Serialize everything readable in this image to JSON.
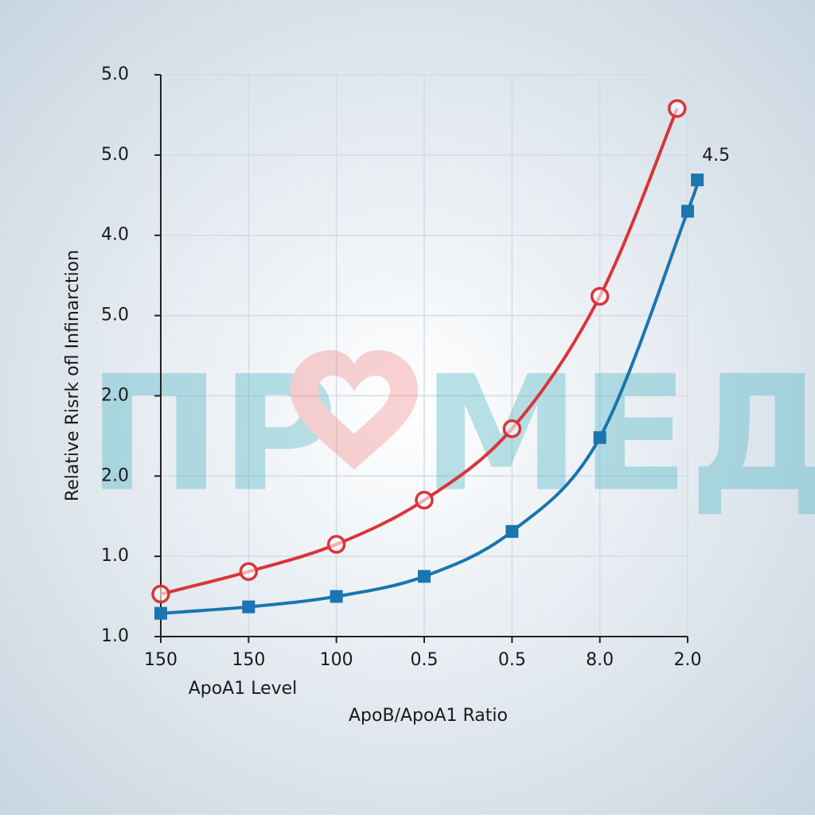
{
  "chart_data": {
    "type": "line",
    "ylabel": "Relative Risrk ofl Infinarction",
    "xlabel": "ApoA1 Level",
    "xlabel2": "ApoB/ApoA1 Ratio",
    "watermark": [
      "ПР",
      "МЕД"
    ],
    "annotations": [
      {
        "text": "4.5",
        "series": 1
      }
    ],
    "grid": true,
    "xlim": [
      0,
      6
    ],
    "xticks": [
      {
        "value": 0,
        "label": "150"
      },
      {
        "value": 1,
        "label": "150"
      },
      {
        "value": 2,
        "label": "100"
      },
      {
        "value": 3,
        "label": "0.5"
      },
      {
        "value": 4,
        "label": "0.5"
      },
      {
        "value": 5,
        "label": "8.0"
      },
      {
        "value": 6,
        "label": "2.0"
      }
    ],
    "ylim": [
      0,
      7
    ],
    "yticks": [
      {
        "value": 0,
        "label": "1.0"
      },
      {
        "value": 1,
        "label": "1.0"
      },
      {
        "value": 2,
        "label": "2.0"
      },
      {
        "value": 3,
        "label": "2.0"
      },
      {
        "value": 4,
        "label": "5.0"
      },
      {
        "value": 5,
        "label": "4.0"
      },
      {
        "value": 6,
        "label": "5.0"
      },
      {
        "value": 7,
        "label": "5.0"
      }
    ],
    "series": [
      {
        "color": "#d9343a",
        "marker": "circle",
        "x": [
          0,
          1,
          2,
          3,
          4,
          5,
          5.88
        ],
        "values": [
          0.53,
          0.81,
          1.15,
          1.7,
          2.59,
          4.24,
          6.58
        ]
      },
      {
        "color": "#1a75b0",
        "marker": "square",
        "x": [
          0,
          1,
          2,
          3,
          4,
          5,
          6,
          6.11
        ],
        "values": [
          0.29,
          0.37,
          0.5,
          0.75,
          1.31,
          2.48,
          5.3,
          5.69
        ]
      }
    ]
  }
}
